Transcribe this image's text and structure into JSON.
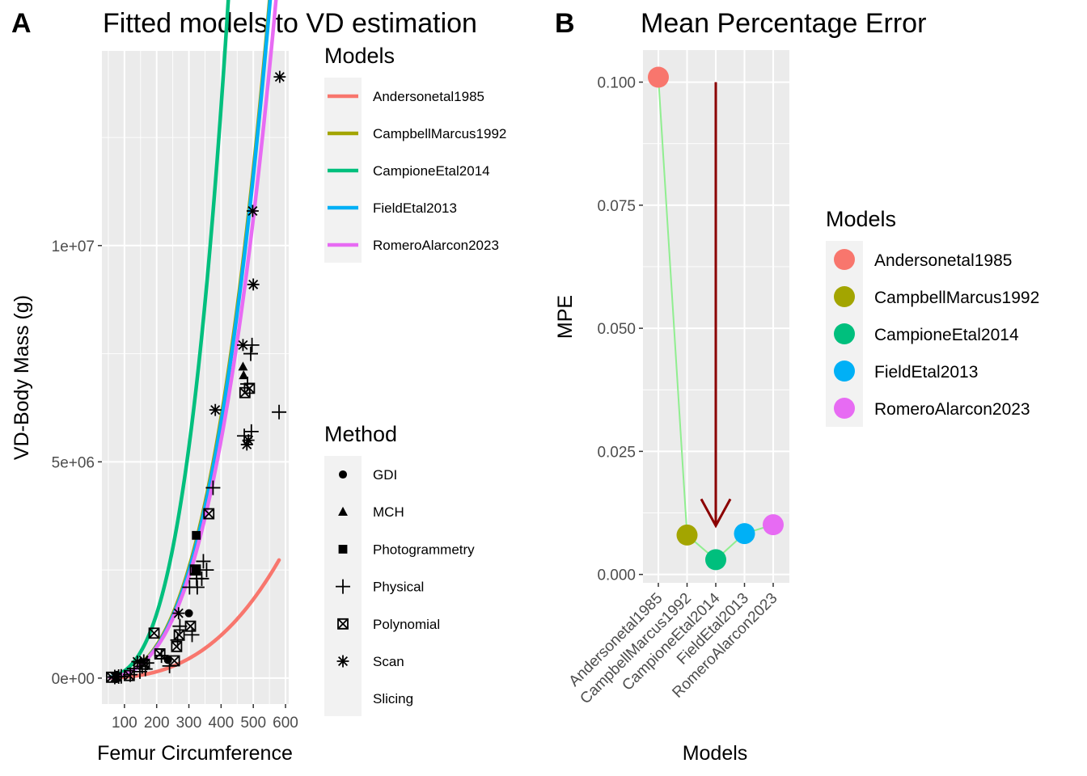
{
  "panel_a": {
    "tag": "A",
    "chart_data": {
      "type": "scatter",
      "title": "Fitted models to VD estimation",
      "xlabel": "Femur Circumference",
      "ylabel": "VD-Body Mass (g)",
      "xlim": [
        30,
        610
      ],
      "ylim": [
        -600000,
        14500000
      ],
      "x_ticks": [
        100,
        200,
        300,
        400,
        500,
        600
      ],
      "x_tick_labels": [
        "100",
        "200",
        "300",
        "400",
        "500",
        "600"
      ],
      "y_ticks": [
        0,
        5000000,
        10000000
      ],
      "y_tick_labels": [
        "0e+00",
        "5e+06",
        "1e+07"
      ],
      "grid": true,
      "models_legend_title": "Models",
      "method_legend_title": "Method",
      "models": [
        {
          "name": "Andersonetal1985",
          "color": "#F8766D"
        },
        {
          "name": "CampbellMarcus1992",
          "color": "#A3A500"
        },
        {
          "name": "CampioneEtal2014",
          "color": "#00BF7D"
        },
        {
          "name": "FieldEtal2013",
          "color": "#00B0F6"
        },
        {
          "name": "RomeroAlarcon2023",
          "color": "#E76BF3"
        }
      ],
      "methods": [
        {
          "name": "GDI",
          "shape": "circle"
        },
        {
          "name": "MCH",
          "shape": "triangle"
        },
        {
          "name": "Photogrammetry",
          "shape": "square"
        },
        {
          "name": "Physical",
          "shape": "plus"
        },
        {
          "name": "Polynomial",
          "shape": "boxcross"
        },
        {
          "name": "Scan",
          "shape": "asterisk"
        },
        {
          "name": "Slicing",
          "shape": "none"
        }
      ],
      "curves": [
        {
          "name": "Andersonetal1985",
          "color": "#F8766D",
          "a": 0.078,
          "b": 2.73,
          "xmin": 55,
          "xmax": 580
        },
        {
          "name": "CampbellMarcus1992",
          "color": "#A3A500",
          "a": 0.1,
          "b": 2.99,
          "xmin": 55,
          "xmax": 580
        },
        {
          "name": "CampioneEtal2014",
          "color": "#00BF7D",
          "a": 0.084,
          "b": 3.15,
          "xmin": 55,
          "xmax": 580
        },
        {
          "name": "FieldEtal2013",
          "color": "#00B0F6",
          "a": 0.082,
          "b": 3.02,
          "xmin": 55,
          "xmax": 577
        },
        {
          "name": "RomeroAlarcon2023",
          "color": "#E76BF3",
          "a": 0.116,
          "b": 2.95,
          "xmin": 55,
          "xmax": 577
        }
      ],
      "points": [
        {
          "x": 60,
          "y": 20000,
          "method": "Polynomial"
        },
        {
          "x": 70,
          "y": 25000,
          "method": "Physical"
        },
        {
          "x": 72,
          "y": 22000,
          "method": "Scan"
        },
        {
          "x": 75,
          "y": 28000,
          "method": "Scan"
        },
        {
          "x": 78,
          "y": 30000,
          "method": "Scan"
        },
        {
          "x": 82,
          "y": 35000,
          "method": "Physical"
        },
        {
          "x": 90,
          "y": 40000,
          "method": "Physical"
        },
        {
          "x": 115,
          "y": 60000,
          "method": "Polynomial"
        },
        {
          "x": 118,
          "y": 80000,
          "method": "Physical"
        },
        {
          "x": 130,
          "y": 220000,
          "method": "Physical"
        },
        {
          "x": 140,
          "y": 380000,
          "method": "Scan"
        },
        {
          "x": 148,
          "y": 150000,
          "method": "Physical"
        },
        {
          "x": 155,
          "y": 270000,
          "method": "Physical"
        },
        {
          "x": 160,
          "y": 410000,
          "method": "Scan"
        },
        {
          "x": 162,
          "y": 320000,
          "method": "Polynomial"
        },
        {
          "x": 165,
          "y": 210000,
          "method": "Physical"
        },
        {
          "x": 170,
          "y": 350000,
          "method": "Physical"
        },
        {
          "x": 192,
          "y": 1040000,
          "method": "Polynomial"
        },
        {
          "x": 210,
          "y": 560000,
          "method": "Polynomial"
        },
        {
          "x": 215,
          "y": 520000,
          "method": "Physical"
        },
        {
          "x": 235,
          "y": 420000,
          "method": "GDI"
        },
        {
          "x": 240,
          "y": 280000,
          "method": "Physical"
        },
        {
          "x": 255,
          "y": 400000,
          "method": "Polynomial"
        },
        {
          "x": 262,
          "y": 730000,
          "method": "Polynomial"
        },
        {
          "x": 265,
          "y": 880000,
          "method": "Physical"
        },
        {
          "x": 268,
          "y": 1500000,
          "method": "Scan"
        },
        {
          "x": 270,
          "y": 1000000,
          "method": "Polynomial"
        },
        {
          "x": 272,
          "y": 1200000,
          "method": "Physical"
        },
        {
          "x": 300,
          "y": 1500000,
          "method": "GDI"
        },
        {
          "x": 302,
          "y": 2100000,
          "method": "Physical"
        },
        {
          "x": 305,
          "y": 1200000,
          "method": "Polynomial"
        },
        {
          "x": 310,
          "y": 1000000,
          "method": "Physical"
        },
        {
          "x": 320,
          "y": 2500000,
          "method": "Polynomial"
        },
        {
          "x": 322,
          "y": 2500000,
          "method": "Photogrammetry"
        },
        {
          "x": 323,
          "y": 3300000,
          "method": "Photogrammetry"
        },
        {
          "x": 324,
          "y": 2300000,
          "method": "Physical"
        },
        {
          "x": 326,
          "y": 2100000,
          "method": "Physical"
        },
        {
          "x": 340,
          "y": 2300000,
          "method": "Physical"
        },
        {
          "x": 345,
          "y": 2700000,
          "method": "Physical"
        },
        {
          "x": 355,
          "y": 2500000,
          "method": "Physical"
        },
        {
          "x": 362,
          "y": 3800000,
          "method": "Polynomial"
        },
        {
          "x": 375,
          "y": 4400000,
          "method": "Physical"
        },
        {
          "x": 382,
          "y": 6200000,
          "method": "Scan"
        },
        {
          "x": 468,
          "y": 7700000,
          "method": "Scan"
        },
        {
          "x": 468,
          "y": 7200000,
          "method": "MCH"
        },
        {
          "x": 470,
          "y": 7000000,
          "method": "MCH"
        },
        {
          "x": 472,
          "y": 5600000,
          "method": "Physical"
        },
        {
          "x": 474,
          "y": 6600000,
          "method": "Polynomial"
        },
        {
          "x": 480,
          "y": 5400000,
          "method": "Scan"
        },
        {
          "x": 482,
          "y": 6800000,
          "method": "Physical"
        },
        {
          "x": 485,
          "y": 5500000,
          "method": "Scan"
        },
        {
          "x": 488,
          "y": 6700000,
          "method": "Polynomial"
        },
        {
          "x": 492,
          "y": 7500000,
          "method": "Physical"
        },
        {
          "x": 494,
          "y": 5700000,
          "method": "Physical"
        },
        {
          "x": 496,
          "y": 7700000,
          "method": "Physical"
        },
        {
          "x": 498,
          "y": 10800000,
          "method": "Scan"
        },
        {
          "x": 500,
          "y": 9100000,
          "method": "Scan"
        },
        {
          "x": 580,
          "y": 6150000,
          "method": "Physical"
        },
        {
          "x": 582,
          "y": 13900000,
          "method": "Scan"
        }
      ]
    }
  },
  "panel_b": {
    "tag": "B",
    "chart_data": {
      "type": "scatter",
      "title": "Mean Percentage Error",
      "xlabel": "Models",
      "ylabel": "MPE",
      "ylim": [
        -0.0017,
        0.1065
      ],
      "y_ticks": [
        0,
        0.025,
        0.05,
        0.075,
        0.1
      ],
      "y_tick_labels": [
        "0.000",
        "0.025",
        "0.050",
        "0.075",
        "0.100"
      ],
      "grid": true,
      "legend_title": "Models",
      "categories": [
        "Andersonetal1985",
        "CampbellMarcus1992",
        "CampioneEtal2014",
        "FieldEtal2013",
        "RomeroAlarcon2023"
      ],
      "values": [
        0.101,
        0.008,
        0.003,
        0.0083,
        0.0101
      ],
      "colors": [
        "#F8766D",
        "#A3A500",
        "#00BF7D",
        "#00B0F6",
        "#E76BF3"
      ],
      "connector_color": "#90EE90",
      "arrow": {
        "category": "CampioneEtal2014",
        "from": 0.1,
        "to": 0.0099,
        "color": "#8B0000"
      }
    }
  }
}
